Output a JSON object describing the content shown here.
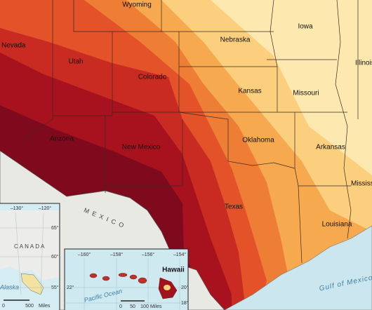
{
  "states": [
    "Wyoming",
    "Nevada",
    "Iowa",
    "Nebraska",
    "Utah",
    "Colorado",
    "Illinois",
    "Kansas",
    "Missouri",
    "Arizona",
    "New Mexico",
    "Oklahoma",
    "Arkansas",
    "Mississippi",
    "Texas",
    "Louisiana"
  ],
  "countries": [
    "MEXICO",
    "CANADA"
  ],
  "water": [
    "Pacific Ocean",
    "Gulf of Mexico"
  ],
  "alaska_inset": {
    "label": "Alaska",
    "longitudes": [
      "–130°",
      "–120°"
    ],
    "latitudes": [
      "65°",
      "60°",
      "55°"
    ],
    "scale": [
      "0",
      "500",
      "Miles"
    ]
  },
  "hawaii_inset": {
    "label": "Hawaii",
    "longitudes": [
      "–160°",
      "–158°",
      "–156°",
      "–154°"
    ],
    "latitudes": [
      "22°",
      "20°",
      "18°"
    ],
    "scale": [
      "0",
      "50",
      "100",
      "Miles"
    ]
  }
}
